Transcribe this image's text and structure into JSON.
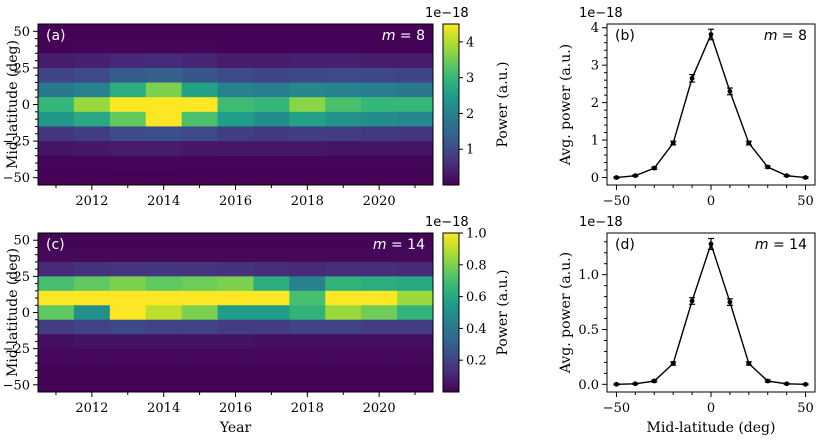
{
  "chart_data": [
    {
      "id": "a",
      "type": "heatmap",
      "panel_tag": "(a)",
      "m_var": "m",
      "m_value": "= 8",
      "xlabel": "",
      "ylabel": "Mid-latitude (deg)",
      "colorbar_label": "Power (a.u.)",
      "colorbar_offset": "1e−18",
      "colorbar_range": [
        0,
        4.5
      ],
      "colorbar_ticks": [
        "1",
        "2",
        "3",
        "4"
      ],
      "colorbar_tick_values": [
        1,
        2,
        3,
        4
      ],
      "x_ticks": [
        "2012",
        "2014",
        "2016",
        "2018",
        "2020"
      ],
      "x_tick_values": [
        2012,
        2014,
        2016,
        2018,
        2020
      ],
      "xlim": [
        2010.5,
        2021.5
      ],
      "y_ticks": [
        "50",
        "25",
        "0",
        "−25",
        "−50"
      ],
      "y_tick_values": [
        50,
        25,
        0,
        -25,
        -50
      ],
      "ylim": [
        -55,
        55
      ],
      "years": [
        2011,
        2012,
        2013,
        2014,
        2015,
        2016,
        2017,
        2018,
        2019,
        2020,
        2021
      ],
      "latitudes": [
        50,
        40,
        30,
        20,
        10,
        0,
        -10,
        -20,
        -30,
        -40,
        -50
      ],
      "values": [
        [
          0.02,
          0.02,
          0.02,
          0.02,
          0.02,
          0.02,
          0.02,
          0.02,
          0.02,
          0.02,
          0.02
        ],
        [
          0.05,
          0.06,
          0.07,
          0.07,
          0.06,
          0.05,
          0.05,
          0.05,
          0.05,
          0.05,
          0.05
        ],
        [
          0.35,
          0.4,
          0.5,
          0.55,
          0.45,
          0.35,
          0.35,
          0.4,
          0.4,
          0.35,
          0.35
        ],
        [
          0.9,
          1.0,
          1.3,
          1.4,
          1.2,
          1.0,
          0.9,
          0.95,
          1.0,
          0.95,
          0.9
        ],
        [
          1.8,
          2.0,
          2.8,
          3.6,
          2.6,
          2.0,
          1.9,
          2.1,
          2.0,
          1.9,
          1.8
        ],
        [
          3.0,
          3.8,
          4.5,
          4.5,
          4.5,
          3.1,
          3.0,
          3.7,
          3.2,
          3.0,
          3.0
        ],
        [
          2.4,
          2.7,
          3.4,
          4.5,
          3.2,
          2.5,
          2.2,
          2.6,
          2.3,
          2.2,
          2.1
        ],
        [
          0.7,
          0.8,
          1.0,
          1.1,
          1.0,
          0.8,
          0.75,
          0.8,
          0.8,
          0.75,
          0.7
        ],
        [
          0.25,
          0.3,
          0.35,
          0.35,
          0.3,
          0.28,
          0.28,
          0.28,
          0.25,
          0.25,
          0.25
        ],
        [
          0.06,
          0.07,
          0.08,
          0.08,
          0.07,
          0.06,
          0.06,
          0.06,
          0.06,
          0.06,
          0.06
        ],
        [
          0.02,
          0.02,
          0.02,
          0.02,
          0.02,
          0.02,
          0.02,
          0.02,
          0.02,
          0.02,
          0.02
        ]
      ]
    },
    {
      "id": "b",
      "type": "line",
      "panel_tag": "(b)",
      "m_var": "m",
      "m_value": "= 8",
      "offset": "1e−18",
      "xlabel": "",
      "ylabel": "Avg. power (a.u.)",
      "x_ticks": [
        "−50",
        "0",
        "50"
      ],
      "x_tick_values": [
        -50,
        0,
        50
      ],
      "xlim": [
        -55,
        55
      ],
      "y_ticks": [
        "0",
        "1",
        "2",
        "3",
        "4"
      ],
      "y_tick_values": [
        0,
        1,
        2,
        3,
        4
      ],
      "ylim": [
        -0.2,
        4.1
      ],
      "x": [
        -50,
        -40,
        -30,
        -20,
        -10,
        0,
        10,
        20,
        30,
        40,
        50
      ],
      "y": [
        0.0,
        0.05,
        0.25,
        0.92,
        2.65,
        3.82,
        2.3,
        0.92,
        0.28,
        0.05,
        0.0
      ],
      "err": [
        0.02,
        0.02,
        0.03,
        0.05,
        0.1,
        0.14,
        0.09,
        0.05,
        0.03,
        0.02,
        0.02
      ]
    },
    {
      "id": "c",
      "type": "heatmap",
      "panel_tag": "(c)",
      "m_var": "m",
      "m_value": "= 14",
      "xlabel": "Year",
      "ylabel": "Mid-latitude (deg)",
      "colorbar_label": "Power (a.u.)",
      "colorbar_offset": "1e−18",
      "colorbar_range": [
        0,
        1.0
      ],
      "colorbar_ticks": [
        "0.2",
        "0.4",
        "0.6",
        "0.8",
        "1.0"
      ],
      "colorbar_tick_values": [
        0.2,
        0.4,
        0.6,
        0.8,
        1.0
      ],
      "x_ticks": [
        "2012",
        "2014",
        "2016",
        "2018",
        "2020"
      ],
      "x_tick_values": [
        2012,
        2014,
        2016,
        2018,
        2020
      ],
      "xlim": [
        2010.5,
        2021.5
      ],
      "y_ticks": [
        "50",
        "25",
        "0",
        "−25",
        "−50"
      ],
      "y_tick_values": [
        50,
        25,
        0,
        -25,
        -50
      ],
      "ylim": [
        -55,
        55
      ],
      "years": [
        2011,
        2012,
        2013,
        2014,
        2015,
        2016,
        2017,
        2018,
        2019,
        2020,
        2021
      ],
      "latitudes": [
        50,
        40,
        30,
        20,
        10,
        0,
        -10,
        -20,
        -30,
        -40,
        -50
      ],
      "values": [
        [
          0.01,
          0.01,
          0.01,
          0.01,
          0.01,
          0.01,
          0.01,
          0.01,
          0.01,
          0.01,
          0.01
        ],
        [
          0.02,
          0.02,
          0.02,
          0.02,
          0.02,
          0.02,
          0.02,
          0.02,
          0.02,
          0.02,
          0.02
        ],
        [
          0.12,
          0.14,
          0.15,
          0.16,
          0.15,
          0.14,
          0.13,
          0.12,
          0.13,
          0.13,
          0.12
        ],
        [
          0.7,
          0.75,
          0.8,
          0.75,
          0.78,
          0.8,
          0.62,
          0.45,
          0.65,
          0.62,
          0.6
        ],
        [
          1.0,
          1.0,
          1.0,
          1.0,
          1.0,
          1.0,
          1.0,
          0.7,
          1.0,
          1.0,
          0.85
        ],
        [
          0.75,
          0.5,
          1.0,
          0.9,
          0.8,
          0.55,
          0.55,
          0.65,
          0.85,
          0.78,
          0.65
        ],
        [
          0.18,
          0.2,
          0.22,
          0.2,
          0.2,
          0.18,
          0.18,
          0.2,
          0.2,
          0.18,
          0.18
        ],
        [
          0.04,
          0.05,
          0.05,
          0.05,
          0.05,
          0.05,
          0.04,
          0.04,
          0.04,
          0.04,
          0.04
        ],
        [
          0.02,
          0.02,
          0.02,
          0.02,
          0.02,
          0.02,
          0.02,
          0.02,
          0.02,
          0.02,
          0.02
        ],
        [
          0.01,
          0.01,
          0.01,
          0.01,
          0.01,
          0.01,
          0.01,
          0.01,
          0.01,
          0.01,
          0.01
        ],
        [
          0.01,
          0.01,
          0.01,
          0.01,
          0.01,
          0.01,
          0.01,
          0.01,
          0.01,
          0.01,
          0.01
        ]
      ]
    },
    {
      "id": "d",
      "type": "line",
      "panel_tag": "(d)",
      "m_var": "m",
      "m_value": "= 14",
      "offset": "1e−18",
      "xlabel": "Mid-latitude (deg)",
      "ylabel": "Avg. power (a.u.)",
      "x_ticks": [
        "−50",
        "0",
        "50"
      ],
      "x_tick_values": [
        -50,
        0,
        50
      ],
      "xlim": [
        -55,
        55
      ],
      "y_ticks": [
        "0.0",
        "0.5",
        "1.0"
      ],
      "y_tick_values": [
        0.0,
        0.5,
        1.0
      ],
      "ylim": [
        -0.07,
        1.38
      ],
      "x": [
        -50,
        -40,
        -30,
        -20,
        -10,
        0,
        10,
        20,
        30,
        40,
        50
      ],
      "y": [
        0.0,
        0.005,
        0.03,
        0.19,
        0.76,
        1.28,
        0.75,
        0.19,
        0.03,
        0.005,
        0.0
      ],
      "err": [
        0.005,
        0.005,
        0.01,
        0.015,
        0.03,
        0.05,
        0.03,
        0.015,
        0.01,
        0.005,
        0.005
      ]
    }
  ]
}
